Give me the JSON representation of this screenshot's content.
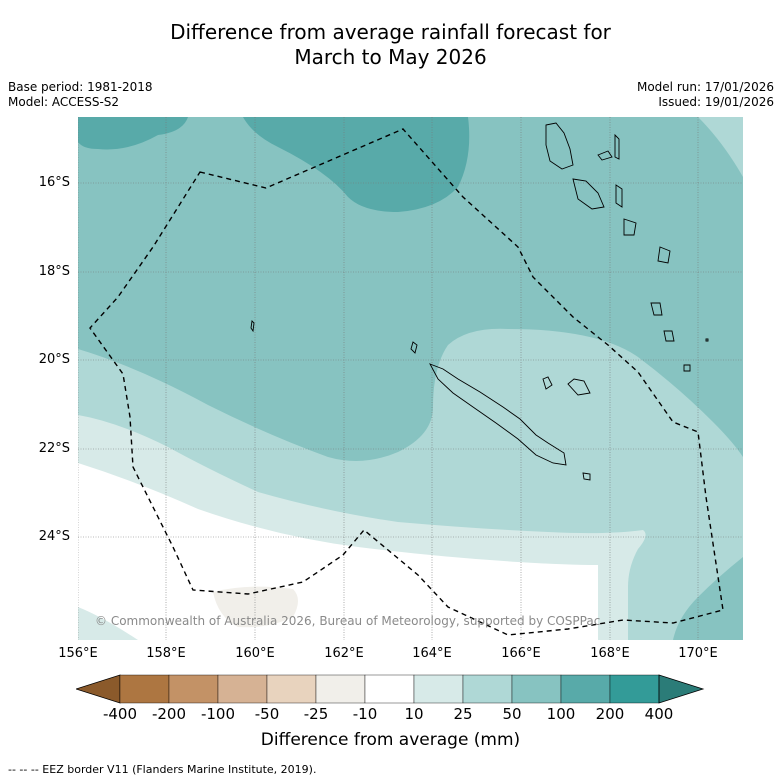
{
  "title_line1": "Difference from average rainfall forecast for",
  "title_line2": "March to May 2026",
  "base_period": "Base period: 1981-2018",
  "model": "Model: ACCESS-S2",
  "model_run": "Model run: 17/01/2026",
  "issued": "Issued: 19/01/2026",
  "copyright": "© Commonwealth of Australia 2026, Bureau of Meteorology, supported by COSPPac",
  "lat_labels": [
    "16°S",
    "18°S",
    "20°S",
    "22°S",
    "24°S"
  ],
  "lon_labels": [
    "156°E",
    "158°E",
    "160°E",
    "162°E",
    "164°E",
    "166°E",
    "168°E",
    "170°E"
  ],
  "colorbar": {
    "title": "Difference from average (mm)",
    "tick_labels": [
      "-400",
      "-200",
      "-100",
      "-50",
      "-25",
      "-10",
      "10",
      "25",
      "50",
      "100",
      "200",
      "400"
    ],
    "colors": [
      "#8b5a2b",
      "#ad7641",
      "#c39266",
      "#d6b294",
      "#e8d3be",
      "#f1efea",
      "#ffffff",
      "#d7eae8",
      "#afd8d6",
      "#87c3c1",
      "#58aaa9",
      "#339b98",
      "#2b7c78"
    ]
  },
  "footer": "--  --  -- EEZ border V11 (Flanders Marine Institute, 2019).",
  "map_colors": {
    "c_200": "#58aaa9",
    "c_100": "#87c3c1",
    "c_50": "#afd8d6",
    "c_25": "#d7eae8",
    "c_10": "#ffffff",
    "c_neg": "#f1efea"
  }
}
